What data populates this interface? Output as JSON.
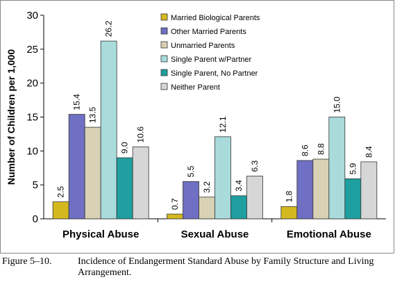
{
  "chart_data": {
    "type": "bar",
    "title": "",
    "xlabel": "",
    "ylabel": "Number of Children per 1,000",
    "ylim": [
      0,
      30
    ],
    "yticks": [
      0,
      5,
      10,
      15,
      20,
      25,
      30
    ],
    "grid": false,
    "legend_position": "top-right",
    "categories": [
      "Physical Abuse",
      "Sexual Abuse",
      "Emotional Abuse"
    ],
    "series": [
      {
        "name": "Married Biological Parents",
        "values": [
          2.5,
          0.7,
          1.8
        ],
        "color": "#d4b820"
      },
      {
        "name": "Other Married Parents",
        "values": [
          15.4,
          5.5,
          8.6
        ],
        "color": "#6f6fc3"
      },
      {
        "name": "Unmarried Parents",
        "values": [
          13.5,
          3.2,
          8.8
        ],
        "color": "#d8d1b4"
      },
      {
        "name": "Single Parent w/Partner",
        "values": [
          26.2,
          12.1,
          15.0
        ],
        "color": "#a9dbdb"
      },
      {
        "name": "Single Parent, No Partner",
        "values": [
          9.0,
          3.4,
          5.9
        ],
        "color": "#1f9f9f"
      },
      {
        "name": "Neither Parent",
        "values": [
          10.6,
          6.3,
          8.4
        ],
        "color": "#d6d6d6"
      }
    ],
    "data_labels": [
      [
        "2.5",
        "0.7",
        "1.8"
      ],
      [
        "15.4",
        "5.5",
        "8.6"
      ],
      [
        "13.5",
        "3.2",
        "8.8"
      ],
      [
        "26.2",
        "12.1",
        "15.0"
      ],
      [
        "9.0",
        "3.4",
        "5.9"
      ],
      [
        "10.6",
        "6.3",
        "8.4"
      ]
    ]
  },
  "caption": {
    "number": "Figure 5–10.",
    "text": "Incidence of Endangerment Standard Abuse by Family Structure and Living Arrangement."
  }
}
